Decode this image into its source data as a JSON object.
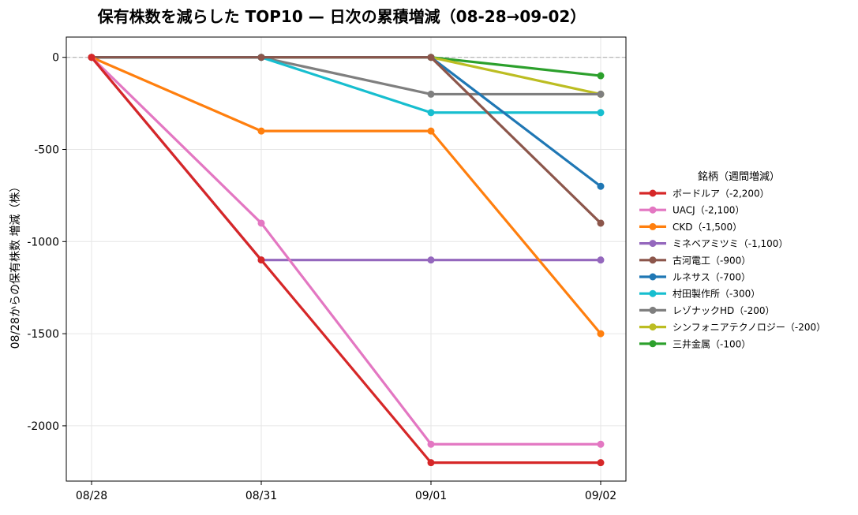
{
  "chart_data": {
    "type": "line",
    "title": "保有株数を減らした TOP10 — 日次の累積増減（08-28→09-02）",
    "xlabel": "",
    "ylabel": "08/28からの保有株数 増減（株）",
    "categories": [
      "08/28",
      "08/31",
      "09/01",
      "09/02"
    ],
    "ylim": [
      -2300,
      110
    ],
    "yticks": [
      0,
      -500,
      -1000,
      -1500,
      -2000
    ],
    "ytick_labels": [
      "0",
      "-500",
      "-1000",
      "-1500",
      "-2000"
    ],
    "grid": true,
    "zero_line": true,
    "legend": {
      "title": "銘柄（週間増減）",
      "placement": "right"
    },
    "series": [
      {
        "name": "ボードルア（-2,200）",
        "color": "#d62728",
        "values": [
          0,
          -1100,
          -2200,
          -2200
        ]
      },
      {
        "name": "UACJ（-2,100）",
        "color": "#e377c2",
        "values": [
          0,
          -900,
          -2100,
          -2100
        ]
      },
      {
        "name": "CKD（-1,500）",
        "color": "#ff7f0e",
        "values": [
          0,
          -400,
          -400,
          -1500
        ]
      },
      {
        "name": "ミネベアミツミ（-1,100）",
        "color": "#9467bd",
        "values": [
          0,
          -1100,
          -1100,
          -1100
        ]
      },
      {
        "name": "古河電工（-900）",
        "color": "#8c564b",
        "values": [
          0,
          0,
          0,
          -900
        ]
      },
      {
        "name": "ルネサス（-700）",
        "color": "#1f77b4",
        "values": [
          0,
          0,
          0,
          -700
        ]
      },
      {
        "name": "村田製作所（-300）",
        "color": "#17becf",
        "values": [
          0,
          0,
          -300,
          -300
        ]
      },
      {
        "name": "レゾナックHD（-200）",
        "color": "#7f7f7f",
        "values": [
          0,
          0,
          -200,
          -200
        ]
      },
      {
        "name": "シンフォニアテクノロジー（-200）",
        "color": "#bcbd22",
        "values": [
          0,
          0,
          0,
          -200
        ]
      },
      {
        "name": "三井金属（-100）",
        "color": "#2ca02c",
        "values": [
          0,
          0,
          0,
          -100
        ]
      }
    ]
  }
}
